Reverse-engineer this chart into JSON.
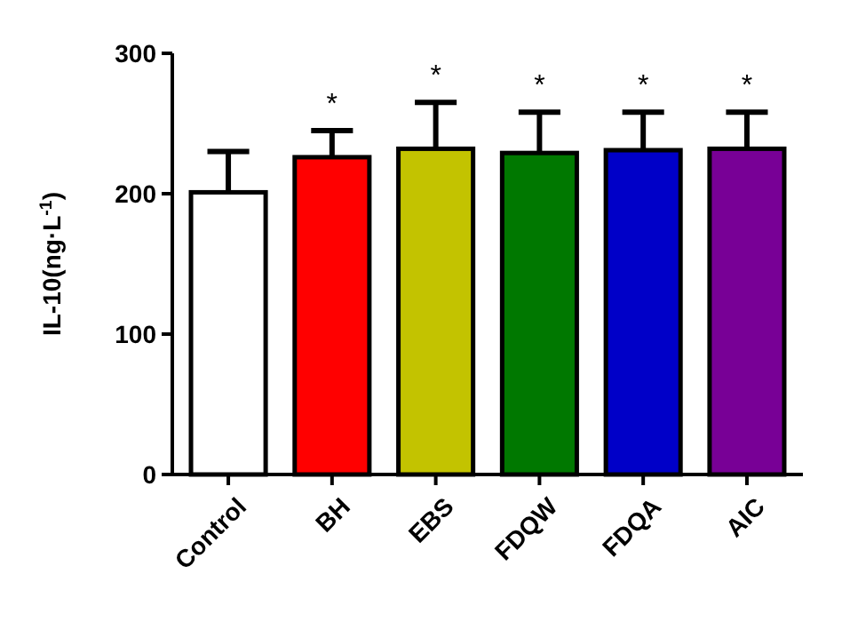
{
  "chart_data": {
    "type": "bar",
    "ylabel": "IL-10(ng·L$^{-1}$)",
    "categories": [
      "Control",
      "BH",
      "EBS",
      "FDQW",
      "FDQA",
      "AIC"
    ],
    "values": [
      201,
      226,
      232,
      229,
      231,
      232
    ],
    "colors": [
      "#ffffff",
      "#ff0000",
      "#c3c300",
      "#007800",
      "#0000c8",
      "#780096"
    ],
    "errors": [
      [
        201,
        230
      ],
      [
        226,
        245
      ],
      [
        232,
        265
      ],
      [
        229,
        258
      ],
      [
        231,
        258
      ],
      [
        232,
        258
      ]
    ],
    "ylim": [
      0,
      300
    ],
    "yticks": [
      0,
      100,
      200,
      300
    ],
    "grid": false,
    "annotations": [
      "*",
      "*",
      "*",
      "*",
      "*"
    ]
  }
}
